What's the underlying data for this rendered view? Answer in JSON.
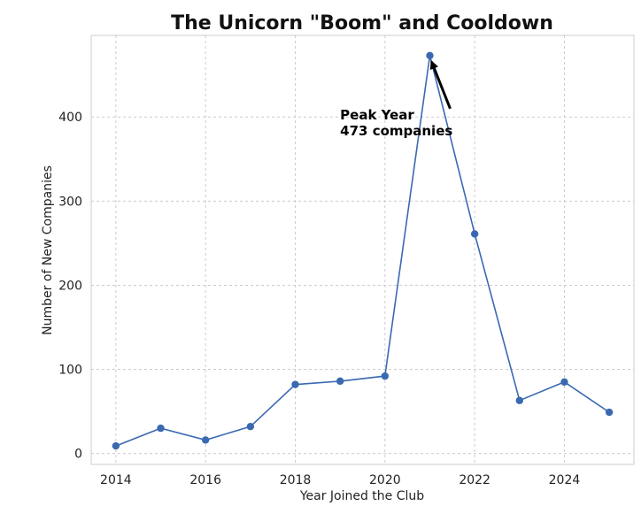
{
  "chart_data": {
    "type": "line",
    "title": "The Unicorn \"Boom\" and Cooldown",
    "xlabel": "Year Joined the Club",
    "ylabel": "Number of New Companies",
    "xlim": [
      2013.45,
      2025.55
    ],
    "ylim": [
      -13,
      497
    ],
    "xticks": [
      2014,
      2016,
      2018,
      2020,
      2022,
      2024
    ],
    "yticks": [
      0,
      100,
      200,
      300,
      400
    ],
    "grid": true,
    "series": [
      {
        "x": [
          2014,
          2015,
          2016,
          2017,
          2018,
          2019,
          2020,
          2021,
          2022,
          2023,
          2024,
          2025
        ],
        "values": [
          9,
          30,
          16,
          32,
          82,
          86,
          92,
          473,
          261,
          63,
          85,
          49
        ],
        "color": "#3a69b2"
      }
    ],
    "annotation": {
      "line1": "Peak Year",
      "line2": "473 companies",
      "x": 2021,
      "y": 473,
      "text_x": 2019,
      "text_y": 378
    }
  }
}
